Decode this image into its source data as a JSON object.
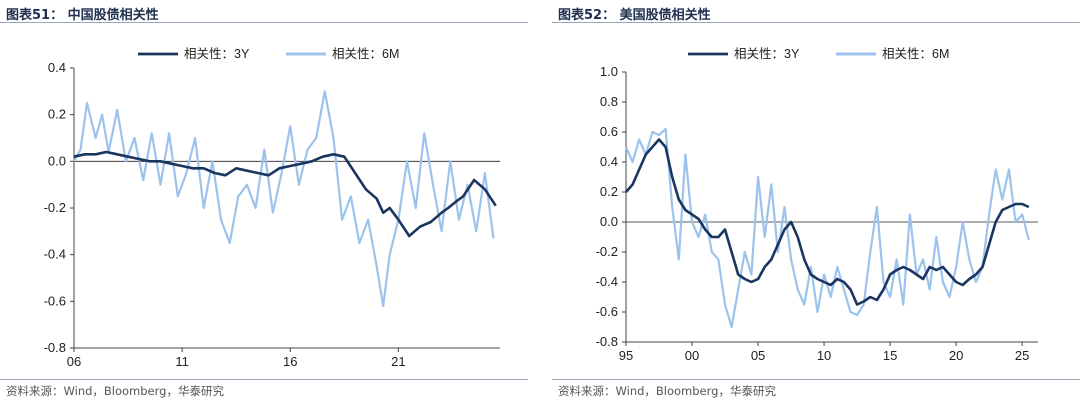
{
  "colors": {
    "series_3y": "#1a3560",
    "series_6m": "#9cc3ec",
    "zero_line": "#222222",
    "axis": "#444444"
  },
  "footer_left": "资料来源：Wind，Bloomberg，华泰研究",
  "footer_right": "资料来源：Wind，Bloomberg，华泰研究",
  "chart_data": [
    {
      "type": "line",
      "title": "图表51：  中国股债相关性",
      "xlabel": "",
      "ylabel": "",
      "x_range": [
        2006,
        2025.7
      ],
      "xticks": [
        2006,
        2011,
        2016,
        2021
      ],
      "xtick_labels": [
        "06",
        "11",
        "16",
        "21"
      ],
      "ylim": [
        -0.8,
        0.4
      ],
      "yticks": [
        -0.8,
        -0.6,
        -0.4,
        -0.2,
        0.0,
        0.2,
        0.4
      ],
      "ytick_labels": [
        "-0.8",
        "-0.6",
        "-0.4",
        "-0.2",
        "0.0",
        "0.2",
        "0.4"
      ],
      "grid": false,
      "legend_position": "top-center",
      "series": [
        {
          "name": "相关性：3Y",
          "x": [
            2006.0,
            2006.5,
            2007.0,
            2007.5,
            2008.0,
            2008.5,
            2009.0,
            2009.5,
            2010.0,
            2010.5,
            2011.0,
            2011.5,
            2012.0,
            2012.5,
            2013.0,
            2013.5,
            2014.0,
            2014.5,
            2015.0,
            2015.5,
            2016.0,
            2016.5,
            2017.0,
            2017.5,
            2018.0,
            2018.5,
            2019.0,
            2019.5,
            2020.0,
            2020.3,
            2020.6,
            2021.0,
            2021.5,
            2022.0,
            2022.5,
            2023.0,
            2023.3,
            2023.7,
            2024.0,
            2024.5,
            2025.0,
            2025.5
          ],
          "y": [
            0.02,
            0.03,
            0.03,
            0.04,
            0.03,
            0.02,
            0.01,
            0.0,
            0.0,
            -0.01,
            -0.02,
            -0.03,
            -0.03,
            -0.05,
            -0.06,
            -0.03,
            -0.04,
            -0.05,
            -0.06,
            -0.03,
            -0.02,
            -0.01,
            0.0,
            0.02,
            0.03,
            0.02,
            -0.05,
            -0.12,
            -0.16,
            -0.22,
            -0.2,
            -0.25,
            -0.32,
            -0.28,
            -0.26,
            -0.22,
            -0.2,
            -0.17,
            -0.15,
            -0.08,
            -0.12,
            -0.19
          ]
        },
        {
          "name": "相关性：6M",
          "x": [
            2006.0,
            2006.3,
            2006.6,
            2007.0,
            2007.3,
            2007.6,
            2008.0,
            2008.4,
            2008.8,
            2009.2,
            2009.6,
            2010.0,
            2010.4,
            2010.8,
            2011.2,
            2011.6,
            2012.0,
            2012.4,
            2012.8,
            2013.2,
            2013.6,
            2014.0,
            2014.4,
            2014.8,
            2015.2,
            2015.6,
            2016.0,
            2016.4,
            2016.8,
            2017.2,
            2017.6,
            2018.0,
            2018.4,
            2018.8,
            2019.2,
            2019.6,
            2020.0,
            2020.3,
            2020.6,
            2021.0,
            2021.4,
            2021.8,
            2022.2,
            2022.6,
            2023.0,
            2023.4,
            2023.8,
            2024.2,
            2024.6,
            2025.0,
            2025.4
          ],
          "y": [
            0.0,
            0.05,
            0.25,
            0.1,
            0.2,
            0.04,
            0.22,
            0.0,
            0.1,
            -0.08,
            0.12,
            -0.1,
            0.12,
            -0.15,
            -0.05,
            0.1,
            -0.2,
            0.0,
            -0.25,
            -0.35,
            -0.15,
            -0.1,
            -0.2,
            0.05,
            -0.22,
            -0.05,
            0.15,
            -0.1,
            0.05,
            0.1,
            0.3,
            0.1,
            -0.25,
            -0.15,
            -0.35,
            -0.25,
            -0.45,
            -0.62,
            -0.4,
            -0.25,
            0.0,
            -0.2,
            0.12,
            -0.1,
            -0.3,
            0.0,
            -0.25,
            -0.1,
            -0.3,
            -0.05,
            -0.33
          ]
        }
      ]
    },
    {
      "type": "line",
      "title": "图表52：  美国股债相关性",
      "xlabel": "",
      "ylabel": "",
      "x_range": [
        1995,
        2026.2
      ],
      "xticks": [
        1995,
        2000,
        2005,
        2010,
        2015,
        2020,
        2025
      ],
      "xtick_labels": [
        "95",
        "00",
        "05",
        "10",
        "15",
        "20",
        "25"
      ],
      "ylim": [
        -0.8,
        1.0
      ],
      "yticks": [
        -0.8,
        -0.6,
        -0.4,
        -0.2,
        0.0,
        0.2,
        0.4,
        0.6,
        0.8,
        1.0
      ],
      "ytick_labels": [
        "-0.8",
        "-0.6",
        "-0.4",
        "-0.2",
        "0.0",
        "0.2",
        "0.4",
        "0.6",
        "0.8",
        "1.0"
      ],
      "grid": false,
      "legend_position": "top-center",
      "series": [
        {
          "name": "相关性：3Y",
          "x": [
            1995.0,
            1995.5,
            1996.0,
            1996.5,
            1997.0,
            1997.5,
            1998.0,
            1998.5,
            1999.0,
            1999.5,
            2000.0,
            2000.5,
            2001.0,
            2001.5,
            2002.0,
            2002.5,
            2003.0,
            2003.5,
            2004.0,
            2004.5,
            2005.0,
            2005.5,
            2006.0,
            2006.5,
            2007.0,
            2007.5,
            2008.0,
            2008.5,
            2009.0,
            2009.5,
            2010.0,
            2010.5,
            2011.0,
            2011.5,
            2012.0,
            2012.5,
            2013.0,
            2013.5,
            2014.0,
            2014.5,
            2015.0,
            2015.5,
            2016.0,
            2016.5,
            2017.0,
            2017.5,
            2018.0,
            2018.5,
            2019.0,
            2019.5,
            2020.0,
            2020.5,
            2021.0,
            2021.5,
            2022.0,
            2022.5,
            2023.0,
            2023.5,
            2024.0,
            2024.5,
            2025.0,
            2025.5
          ],
          "y": [
            0.2,
            0.25,
            0.35,
            0.45,
            0.5,
            0.55,
            0.5,
            0.3,
            0.15,
            0.08,
            0.05,
            0.02,
            -0.05,
            -0.1,
            -0.1,
            -0.05,
            -0.2,
            -0.35,
            -0.38,
            -0.4,
            -0.38,
            -0.3,
            -0.25,
            -0.15,
            -0.05,
            0.0,
            -0.1,
            -0.25,
            -0.35,
            -0.38,
            -0.4,
            -0.42,
            -0.38,
            -0.4,
            -0.45,
            -0.55,
            -0.53,
            -0.5,
            -0.52,
            -0.45,
            -0.35,
            -0.32,
            -0.3,
            -0.32,
            -0.35,
            -0.38,
            -0.3,
            -0.32,
            -0.3,
            -0.35,
            -0.4,
            -0.42,
            -0.38,
            -0.35,
            -0.3,
            -0.15,
            0.0,
            0.08,
            0.1,
            0.12,
            0.12,
            0.1
          ]
        },
        {
          "name": "相关性：6M",
          "x": [
            1995.0,
            1995.5,
            1996.0,
            1996.5,
            1997.0,
            1997.5,
            1998.0,
            1998.5,
            1999.0,
            1999.5,
            2000.0,
            2000.5,
            2001.0,
            2001.5,
            2002.0,
            2002.5,
            2003.0,
            2003.5,
            2004.0,
            2004.5,
            2005.0,
            2005.5,
            2006.0,
            2006.5,
            2007.0,
            2007.5,
            2008.0,
            2008.5,
            2009.0,
            2009.5,
            2010.0,
            2010.5,
            2011.0,
            2011.5,
            2012.0,
            2012.5,
            2013.0,
            2013.5,
            2014.0,
            2014.5,
            2015.0,
            2015.5,
            2016.0,
            2016.5,
            2017.0,
            2017.5,
            2018.0,
            2018.5,
            2019.0,
            2019.5,
            2020.0,
            2020.5,
            2021.0,
            2021.5,
            2022.0,
            2022.5,
            2023.0,
            2023.5,
            2024.0,
            2024.5,
            2025.0,
            2025.5
          ],
          "y": [
            0.5,
            0.4,
            0.55,
            0.45,
            0.6,
            0.58,
            0.62,
            0.1,
            -0.25,
            0.45,
            0.0,
            -0.1,
            0.05,
            -0.2,
            -0.25,
            -0.55,
            -0.7,
            -0.45,
            -0.2,
            -0.35,
            0.3,
            -0.1,
            0.25,
            -0.2,
            0.1,
            -0.25,
            -0.45,
            -0.55,
            -0.3,
            -0.6,
            -0.35,
            -0.5,
            -0.3,
            -0.45,
            -0.6,
            -0.62,
            -0.55,
            -0.2,
            0.1,
            -0.4,
            -0.5,
            -0.25,
            -0.55,
            0.05,
            -0.35,
            -0.25,
            -0.45,
            -0.1,
            -0.4,
            -0.5,
            -0.3,
            0.0,
            -0.25,
            -0.4,
            -0.3,
            0.05,
            0.35,
            0.15,
            0.35,
            0.0,
            0.05,
            -0.12
          ]
        }
      ]
    }
  ]
}
